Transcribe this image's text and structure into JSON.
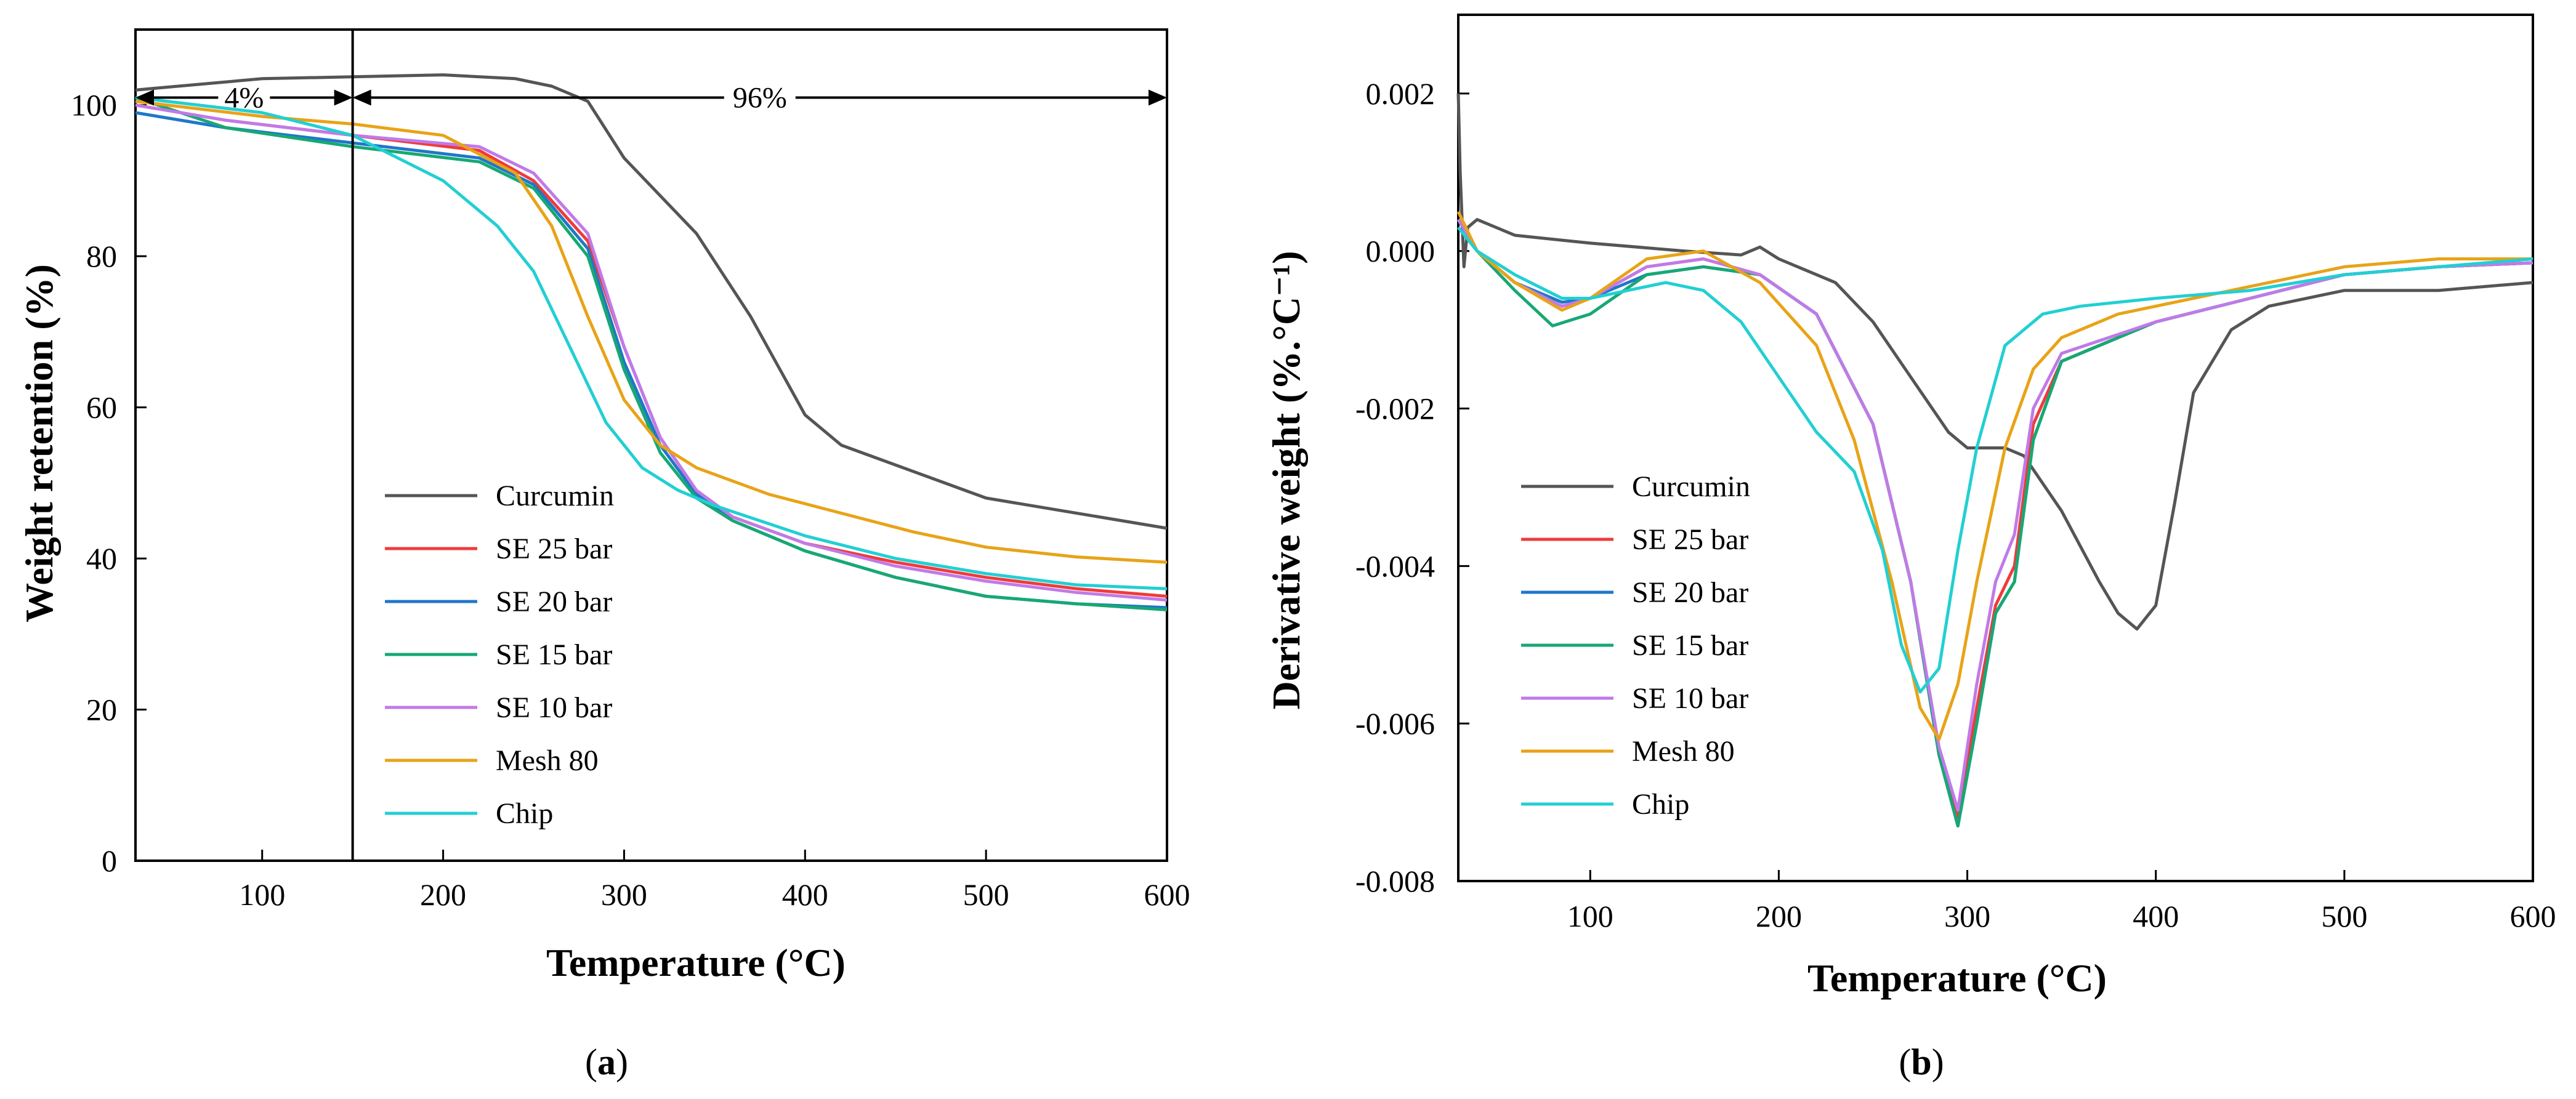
{
  "chart_data": [
    {
      "type": "line",
      "panel_label": "a",
      "xlabel": "Temperature (°C)",
      "ylabel": "Weight retention (%)",
      "xlim": [
        30,
        600
      ],
      "ylim": [
        0,
        110
      ],
      "xticks": [
        100,
        200,
        300,
        400,
        500,
        600
      ],
      "yticks": [
        0,
        20,
        40,
        60,
        80,
        100
      ],
      "xtick_labels": [
        "100",
        "200",
        "300",
        "400",
        "500",
        "600"
      ],
      "ytick_labels": [
        "0",
        "20",
        "40",
        "60",
        "80",
        "100"
      ],
      "legend_position": "bottom-left",
      "annotations": [
        {
          "text": "4%",
          "x_from": 30,
          "x_to": 150,
          "y": 101
        },
        {
          "text": "96%",
          "x_from": 150,
          "x_to": 600,
          "y": 101
        }
      ],
      "divider_x": 150,
      "series": [
        {
          "name": "Curcumin",
          "color": "#555555",
          "x": [
            30,
            100,
            200,
            240,
            260,
            280,
            300,
            340,
            370,
            400,
            420,
            500,
            600
          ],
          "y": [
            102,
            103.5,
            104,
            103.5,
            102.5,
            100.5,
            93,
            83,
            72,
            59,
            55,
            48,
            44
          ]
        },
        {
          "name": "SE 25 bar",
          "color": "#ef3b3b",
          "x": [
            30,
            80,
            150,
            220,
            250,
            280,
            300,
            320,
            340,
            360,
            400,
            450,
            500,
            550,
            600
          ],
          "y": [
            100,
            98,
            96,
            94,
            90,
            82,
            68,
            56,
            49,
            45.5,
            42,
            39.5,
            37.5,
            36,
            35
          ]
        },
        {
          "name": "SE 20 bar",
          "color": "#1f77c9",
          "x": [
            30,
            80,
            150,
            220,
            250,
            280,
            300,
            320,
            340,
            360,
            400,
            450,
            500,
            550,
            600
          ],
          "y": [
            99,
            97,
            95,
            93,
            89.5,
            81,
            66,
            55,
            48.5,
            45,
            41,
            37.5,
            35,
            34,
            33.5
          ]
        },
        {
          "name": "SE 15 bar",
          "color": "#17a873",
          "x": [
            30,
            80,
            150,
            220,
            250,
            280,
            300,
            320,
            340,
            360,
            400,
            450,
            500,
            550,
            600
          ],
          "y": [
            101,
            97,
            94.5,
            92.5,
            89,
            80,
            65,
            54,
            48,
            45,
            41,
            37.5,
            35,
            34,
            33.2
          ]
        },
        {
          "name": "SE 10 bar",
          "color": "#c07ae8",
          "x": [
            30,
            80,
            150,
            220,
            250,
            280,
            300,
            320,
            340,
            360,
            400,
            450,
            500,
            550,
            600
          ],
          "y": [
            100,
            98,
            96,
            94.5,
            91,
            83,
            68,
            56,
            49,
            45.5,
            42,
            39,
            37,
            35.5,
            34.5
          ]
        },
        {
          "name": "Mesh 80",
          "color": "#e8a317",
          "x": [
            30,
            100,
            150,
            200,
            240,
            260,
            280,
            300,
            320,
            340,
            380,
            420,
            460,
            500,
            550,
            600
          ],
          "y": [
            100.5,
            98.5,
            97.5,
            96,
            91,
            84,
            72,
            61,
            55,
            52,
            48.5,
            46,
            43.5,
            41.5,
            40.2,
            39.5
          ]
        },
        {
          "name": "Chip",
          "color": "#22cfd3",
          "x": [
            30,
            100,
            150,
            200,
            230,
            250,
            270,
            290,
            310,
            330,
            350,
            400,
            450,
            500,
            550,
            600
          ],
          "y": [
            101,
            99,
            96,
            90,
            84,
            78,
            68,
            58,
            52,
            49,
            47,
            43,
            40,
            38,
            36.5,
            36
          ]
        }
      ]
    },
    {
      "type": "line",
      "panel_label": "b",
      "xlabel": "Temperature (°C)",
      "ylabel": "Derivative weight (%.°C⁻¹)",
      "xlim": [
        30,
        600
      ],
      "ylim": [
        -0.008,
        0.003
      ],
      "xticks": [
        100,
        200,
        300,
        400,
        500,
        600
      ],
      "yticks": [
        -0.008,
        -0.006,
        -0.004,
        -0.002,
        0.0,
        0.002
      ],
      "xtick_labels": [
        "100",
        "200",
        "300",
        "400",
        "500",
        "600"
      ],
      "ytick_labels": [
        "-0.008",
        "-0.006",
        "-0.004",
        "-0.002",
        "0.000",
        "0.002"
      ],
      "legend_position": "bottom-left",
      "series": [
        {
          "name": "Curcumin",
          "color": "#555555",
          "x": [
            30,
            31,
            33,
            35,
            40,
            60,
            100,
            150,
            180,
            190,
            200,
            230,
            250,
            270,
            290,
            300,
            310,
            320,
            330,
            350,
            370,
            380,
            390,
            400,
            410,
            420,
            440,
            460,
            500,
            550,
            600
          ],
          "y": [
            0.002,
            0.001,
            -0.0002,
            0.0003,
            0.0004,
            0.0002,
            0.0001,
            0.0,
            -5e-05,
            5e-05,
            -0.0001,
            -0.0004,
            -0.0009,
            -0.0016,
            -0.0023,
            -0.0025,
            -0.0025,
            -0.0025,
            -0.0026,
            -0.0033,
            -0.0042,
            -0.0046,
            -0.0048,
            -0.0045,
            -0.0032,
            -0.0018,
            -0.001,
            -0.0007,
            -0.0005,
            -0.0005,
            -0.0004
          ]
        },
        {
          "name": "SE 25 bar",
          "color": "#ef3b3b",
          "x": [
            30,
            40,
            60,
            85,
            100,
            130,
            160,
            190,
            220,
            250,
            270,
            285,
            295,
            305,
            315,
            325,
            335,
            350,
            400,
            450,
            500,
            550,
            600
          ],
          "y": [
            0.0004,
            0.0,
            -0.0004,
            -0.0007,
            -0.0006,
            -0.0002,
            -0.0001,
            -0.0003,
            -0.0008,
            -0.0022,
            -0.0042,
            -0.0064,
            -0.0072,
            -0.0058,
            -0.0045,
            -0.004,
            -0.0022,
            -0.0014,
            -0.0009,
            -0.0006,
            -0.0003,
            -0.0002,
            -0.00015
          ]
        },
        {
          "name": "SE 20 bar",
          "color": "#1f77c9",
          "x": [
            30,
            40,
            60,
            85,
            100,
            130,
            160,
            190,
            220,
            250,
            270,
            285,
            295,
            305,
            315,
            325,
            335,
            350,
            400,
            450,
            500,
            550,
            600
          ],
          "y": [
            0.0003,
            0.0,
            -0.0004,
            -0.00065,
            -0.0006,
            -0.0003,
            -0.0002,
            -0.0003,
            -0.0008,
            -0.0022,
            -0.0042,
            -0.0064,
            -0.0073,
            -0.006,
            -0.0046,
            -0.0042,
            -0.0024,
            -0.0014,
            -0.0009,
            -0.0006,
            -0.0003,
            -0.0002,
            -0.00015
          ]
        },
        {
          "name": "SE 15 bar",
          "color": "#17a873",
          "x": [
            30,
            40,
            60,
            80,
            100,
            130,
            160,
            190,
            220,
            250,
            270,
            285,
            295,
            305,
            315,
            325,
            335,
            350,
            400,
            450,
            500,
            550,
            600
          ],
          "y": [
            0.0004,
            0.0,
            -0.0005,
            -0.00095,
            -0.0008,
            -0.0003,
            -0.0002,
            -0.0003,
            -0.0008,
            -0.0022,
            -0.0042,
            -0.0064,
            -0.0073,
            -0.006,
            -0.0046,
            -0.0042,
            -0.0024,
            -0.0014,
            -0.0009,
            -0.0006,
            -0.0003,
            -0.0002,
            -0.00015
          ]
        },
        {
          "name": "SE 10 bar",
          "color": "#c07ae8",
          "x": [
            30,
            40,
            60,
            85,
            100,
            130,
            160,
            190,
            220,
            250,
            270,
            285,
            295,
            305,
            315,
            325,
            335,
            350,
            400,
            450,
            500,
            550,
            600
          ],
          "y": [
            0.0004,
            0.0,
            -0.0004,
            -0.0007,
            -0.0006,
            -0.0002,
            -0.0001,
            -0.0003,
            -0.0008,
            -0.0022,
            -0.0042,
            -0.0063,
            -0.0071,
            -0.0055,
            -0.0042,
            -0.0036,
            -0.002,
            -0.0013,
            -0.0009,
            -0.0006,
            -0.0003,
            -0.0002,
            -0.00015
          ]
        },
        {
          "name": "Mesh 80",
          "color": "#e8a317",
          "x": [
            30,
            40,
            60,
            85,
            100,
            130,
            160,
            190,
            220,
            240,
            260,
            275,
            285,
            295,
            305,
            320,
            335,
            350,
            380,
            420,
            460,
            500,
            550,
            600
          ],
          "y": [
            0.0005,
            0.0,
            -0.0004,
            -0.00075,
            -0.0006,
            -0.0001,
            0.0,
            -0.0004,
            -0.0012,
            -0.0024,
            -0.0042,
            -0.0058,
            -0.0062,
            -0.0055,
            -0.0042,
            -0.0025,
            -0.0015,
            -0.0011,
            -0.0008,
            -0.0006,
            -0.0004,
            -0.0002,
            -0.0001,
            -0.0001
          ]
        },
        {
          "name": "Chip",
          "color": "#22cfd3",
          "x": [
            30,
            40,
            60,
            85,
            100,
            120,
            140,
            160,
            180,
            200,
            220,
            240,
            255,
            265,
            275,
            285,
            295,
            305,
            320,
            340,
            360,
            400,
            450,
            500,
            550,
            600
          ],
          "y": [
            0.0003,
            0.0,
            -0.0003,
            -0.0006,
            -0.0006,
            -0.0005,
            -0.0004,
            -0.0005,
            -0.0009,
            -0.0016,
            -0.0023,
            -0.0028,
            -0.0038,
            -0.005,
            -0.0056,
            -0.0053,
            -0.0038,
            -0.0025,
            -0.0012,
            -0.0008,
            -0.0007,
            -0.0006,
            -0.0005,
            -0.0003,
            -0.0002,
            -0.0001
          ]
        }
      ]
    }
  ]
}
